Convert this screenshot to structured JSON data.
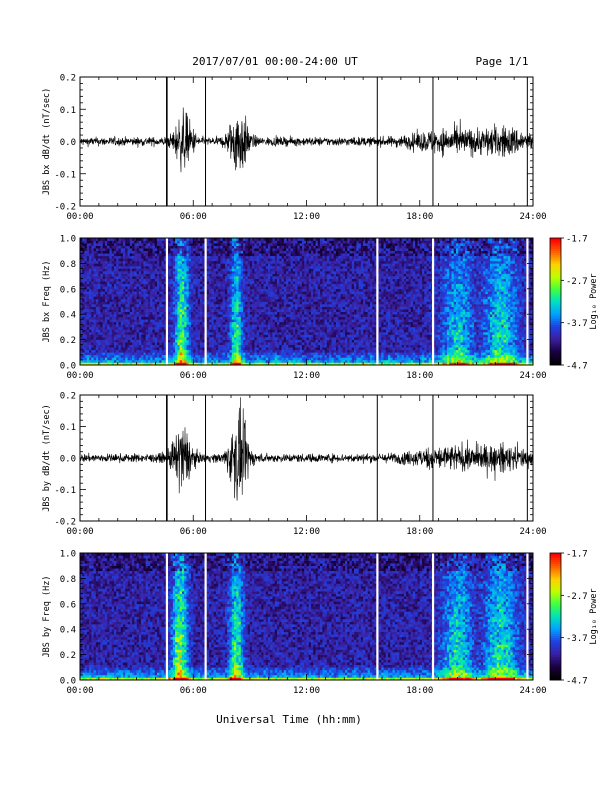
{
  "header": {
    "title": "2017/07/01  00:00-24:00 UT",
    "page": "Page 1/1"
  },
  "footer": {
    "xlabel": "Universal Time (hh:mm)"
  },
  "colorbar": {
    "label": "Log₁₀ Power",
    "ticks": [
      "-1.7",
      "-2.7",
      "-3.7",
      "-4.7"
    ],
    "tick_values": [
      -1.7,
      -2.7,
      -3.7,
      -4.7
    ],
    "range": [
      -4.7,
      -1.7
    ],
    "colors": [
      "#000000",
      "#1a0040",
      "#3a1fa0",
      "#2040e0",
      "#00a0ff",
      "#00e0c0",
      "#40ff40",
      "#c0ff00",
      "#ffd000",
      "#ff6000",
      "#ff0000"
    ]
  },
  "chart_data": [
    {
      "type": "line",
      "ylabel": "JBS bx dB/dt (nT/sec)",
      "xlim": [
        0,
        24
      ],
      "ylim": [
        -0.2,
        0.2
      ],
      "x_ticks": [
        0,
        6,
        12,
        18,
        24
      ],
      "x_tick_labels": [
        "00:00",
        "06:00",
        "12:00",
        "18:00",
        "24:00"
      ],
      "y_ticks": [
        -0.2,
        -0.1,
        0.0,
        0.1,
        0.2
      ],
      "y_tick_labels": [
        "-0.2",
        "-0.1",
        "0.0",
        "0.1",
        "0.2"
      ],
      "grid": false,
      "spikes_hours": [
        4.6,
        6.65,
        15.75,
        18.7,
        23.7
      ],
      "activity": [
        {
          "center": 5.5,
          "width": 0.5,
          "amplitude": 0.07
        },
        {
          "center": 8.4,
          "width": 0.5,
          "amplitude": 0.09
        },
        {
          "center": 19.5,
          "width": 2.0,
          "amplitude": 0.025
        },
        {
          "center": 22.5,
          "width": 1.5,
          "amplitude": 0.03
        }
      ],
      "baseline_noise": 0.012,
      "series": [
        {
          "values": []
        }
      ]
    },
    {
      "type": "heatmap",
      "ylabel": "JBS bx Freq (Hz)",
      "xlim": [
        0,
        24
      ],
      "ylim": [
        0.0,
        1.0
      ],
      "x_ticks": [
        0,
        6,
        12,
        18,
        24
      ],
      "x_tick_labels": [
        "00:00",
        "06:00",
        "12:00",
        "18:00",
        "24:00"
      ],
      "y_ticks": [
        0.0,
        0.2,
        0.4,
        0.6,
        0.8,
        1.0
      ],
      "y_tick_labels": [
        "0.0",
        "0.2",
        "0.4",
        "0.6",
        "0.8",
        "1.0"
      ],
      "z_range": [
        -4.7,
        -1.7
      ],
      "data_gaps_hours": [
        4.6,
        6.65,
        15.75,
        18.7,
        23.7
      ],
      "activity": [
        {
          "center": 5.4,
          "width": 0.35,
          "level": -3.0
        },
        {
          "center": 8.3,
          "width": 0.3,
          "level": -3.3
        },
        {
          "center": 20.0,
          "width": 0.8,
          "level": -3.6
        },
        {
          "center": 22.3,
          "width": 0.9,
          "level": -3.5
        }
      ]
    },
    {
      "type": "line",
      "ylabel": "JBS by dB/dt (nT/sec)",
      "xlim": [
        0,
        24
      ],
      "ylim": [
        -0.2,
        0.2
      ],
      "x_ticks": [
        0,
        6,
        12,
        18,
        24
      ],
      "x_tick_labels": [
        "00:00",
        "06:00",
        "12:00",
        "18:00",
        "24:00"
      ],
      "y_ticks": [
        -0.2,
        -0.1,
        0.0,
        0.1,
        0.2
      ],
      "y_tick_labels": [
        "-0.2",
        "-0.1",
        "0.0",
        "0.1",
        "0.2"
      ],
      "grid": false,
      "spikes_hours": [
        4.6,
        6.65,
        15.75,
        18.7,
        23.7
      ],
      "activity": [
        {
          "center": 5.4,
          "width": 0.5,
          "amplitude": 0.09
        },
        {
          "center": 8.4,
          "width": 0.5,
          "amplitude": 0.12
        },
        {
          "center": 19.5,
          "width": 2.0,
          "amplitude": 0.025
        },
        {
          "center": 22.5,
          "width": 1.5,
          "amplitude": 0.025
        }
      ],
      "baseline_noise": 0.012,
      "series": [
        {
          "values": []
        }
      ]
    },
    {
      "type": "heatmap",
      "ylabel": "JBS by Freq (Hz)",
      "xlim": [
        0,
        24
      ],
      "ylim": [
        0.0,
        1.0
      ],
      "x_ticks": [
        0,
        6,
        12,
        18,
        24
      ],
      "x_tick_labels": [
        "00:00",
        "06:00",
        "12:00",
        "18:00",
        "24:00"
      ],
      "y_ticks": [
        0.0,
        0.2,
        0.4,
        0.6,
        0.8,
        1.0
      ],
      "y_tick_labels": [
        "0.0",
        "0.2",
        "0.4",
        "0.6",
        "0.8",
        "1.0"
      ],
      "z_range": [
        -4.7,
        -1.7
      ],
      "data_gaps_hours": [
        4.6,
        6.65,
        15.75,
        18.7,
        23.7
      ],
      "activity": [
        {
          "center": 5.3,
          "width": 0.4,
          "level": -2.8
        },
        {
          "center": 8.3,
          "width": 0.35,
          "level": -3.1
        },
        {
          "center": 20.0,
          "width": 0.8,
          "level": -3.5
        },
        {
          "center": 22.3,
          "width": 0.9,
          "level": -3.4
        }
      ]
    }
  ]
}
